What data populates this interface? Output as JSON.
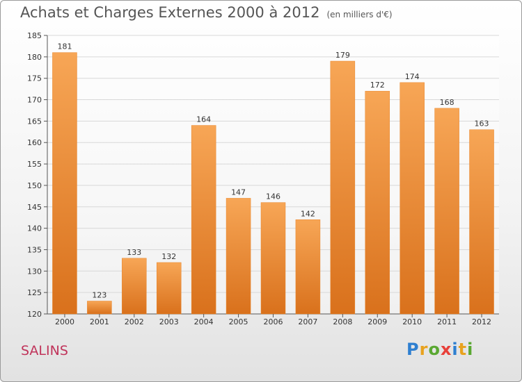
{
  "title": "Achats et Charges Externes 2000 à 2012",
  "subtitle": "(en milliers d'€)",
  "city": "SALINS",
  "logo": {
    "text": "Proxiti",
    "letters": [
      "P",
      "r",
      "o",
      "x",
      "i",
      "t",
      "i"
    ],
    "colors": [
      "#2e7fd0",
      "#e8a21e",
      "#5aa832",
      "#e8403a",
      "#2e7fd0",
      "#e8a21e",
      "#5aa832"
    ]
  },
  "colors": {
    "bar_light": "#f7a656",
    "bar_dark": "#d9711c",
    "axis": "#555555",
    "grid": "#d8d8d8"
  },
  "chart_data": {
    "type": "bar",
    "categories": [
      "2000",
      "2001",
      "2002",
      "2003",
      "2004",
      "2005",
      "2006",
      "2007",
      "2008",
      "2009",
      "2010",
      "2011",
      "2012"
    ],
    "values": [
      181,
      123,
      133,
      132,
      164,
      147,
      146,
      142,
      179,
      172,
      174,
      168,
      163
    ],
    "ylim": [
      120,
      185
    ],
    "yticks": [
      120,
      125,
      130,
      135,
      140,
      145,
      150,
      155,
      160,
      165,
      170,
      175,
      180,
      185
    ],
    "grid": true
  }
}
